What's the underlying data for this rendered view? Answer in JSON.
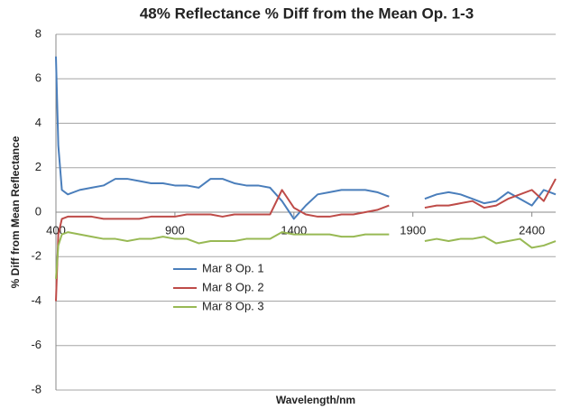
{
  "chart_data": {
    "type": "line",
    "title": "48% Reflectance % Diff from the Mean Op. 1-3",
    "x_label": "Wavelength/nm",
    "y_label": "% Diff from Mean Reflectance",
    "x": [
      400,
      410,
      425,
      450,
      500,
      550,
      600,
      650,
      700,
      750,
      800,
      850,
      900,
      950,
      1000,
      1050,
      1100,
      1150,
      1200,
      1250,
      1300,
      1350,
      1400,
      1450,
      1500,
      1550,
      1600,
      1650,
      1700,
      1750,
      1800,
      1850,
      1900,
      1950,
      2000,
      2050,
      2100,
      2150,
      2200,
      2250,
      2300,
      2350,
      2400,
      2450,
      2500
    ],
    "series": [
      {
        "name": "Mar 8 Op. 1",
        "color": "#4a7ebb",
        "values": [
          7,
          3,
          1.0,
          0.8,
          1.0,
          1.1,
          1.2,
          1.5,
          1.5,
          1.4,
          1.3,
          1.3,
          1.2,
          1.2,
          1.1,
          1.5,
          1.5,
          1.3,
          1.2,
          1.2,
          1.1,
          0.5,
          -0.3,
          0.3,
          0.8,
          0.9,
          1.0,
          1.0,
          1.0,
          0.9,
          0.7,
          null,
          null,
          0.6,
          0.8,
          0.9,
          0.8,
          0.6,
          0.4,
          0.5,
          0.9,
          0.6,
          0.3,
          1.0,
          0.8
        ]
      },
      {
        "name": "Mar 8 Op. 2",
        "color": "#be4b48",
        "values": [
          -4,
          -1,
          -0.3,
          -0.2,
          -0.2,
          -0.2,
          -0.3,
          -0.3,
          -0.3,
          -0.3,
          -0.2,
          -0.2,
          -0.2,
          -0.1,
          -0.1,
          -0.1,
          -0.2,
          -0.1,
          -0.1,
          -0.1,
          -0.1,
          1.0,
          0.2,
          -0.1,
          -0.2,
          -0.2,
          -0.1,
          -0.1,
          0.0,
          0.1,
          0.3,
          null,
          null,
          0.2,
          0.3,
          0.3,
          0.4,
          0.5,
          0.2,
          0.3,
          0.6,
          0.8,
          1.0,
          0.5,
          1.5
        ]
      },
      {
        "name": "Mar 8 Op. 3",
        "color": "#98b954",
        "values": [
          -3,
          -1.5,
          -1.0,
          -0.9,
          -1.0,
          -1.1,
          -1.2,
          -1.2,
          -1.3,
          -1.2,
          -1.2,
          -1.1,
          -1.2,
          -1.2,
          -1.4,
          -1.3,
          -1.3,
          -1.3,
          -1.2,
          -1.2,
          -1.2,
          -0.9,
          -1.0,
          -1.0,
          -1.0,
          -1.0,
          -1.1,
          -1.1,
          -1.0,
          -1.0,
          -1.0,
          null,
          null,
          -1.3,
          -1.2,
          -1.3,
          -1.2,
          -1.2,
          -1.1,
          -1.4,
          -1.3,
          -1.2,
          -1.6,
          -1.5,
          -1.3
        ]
      }
    ],
    "xlim": [
      400,
      2500
    ],
    "xticks": [
      400,
      900,
      1400,
      1900,
      2400
    ],
    "ylim": [
      -8,
      8
    ],
    "yticks": [
      -8,
      -6,
      -4,
      -2,
      0,
      2,
      4,
      6,
      8
    ],
    "grid": true
  }
}
